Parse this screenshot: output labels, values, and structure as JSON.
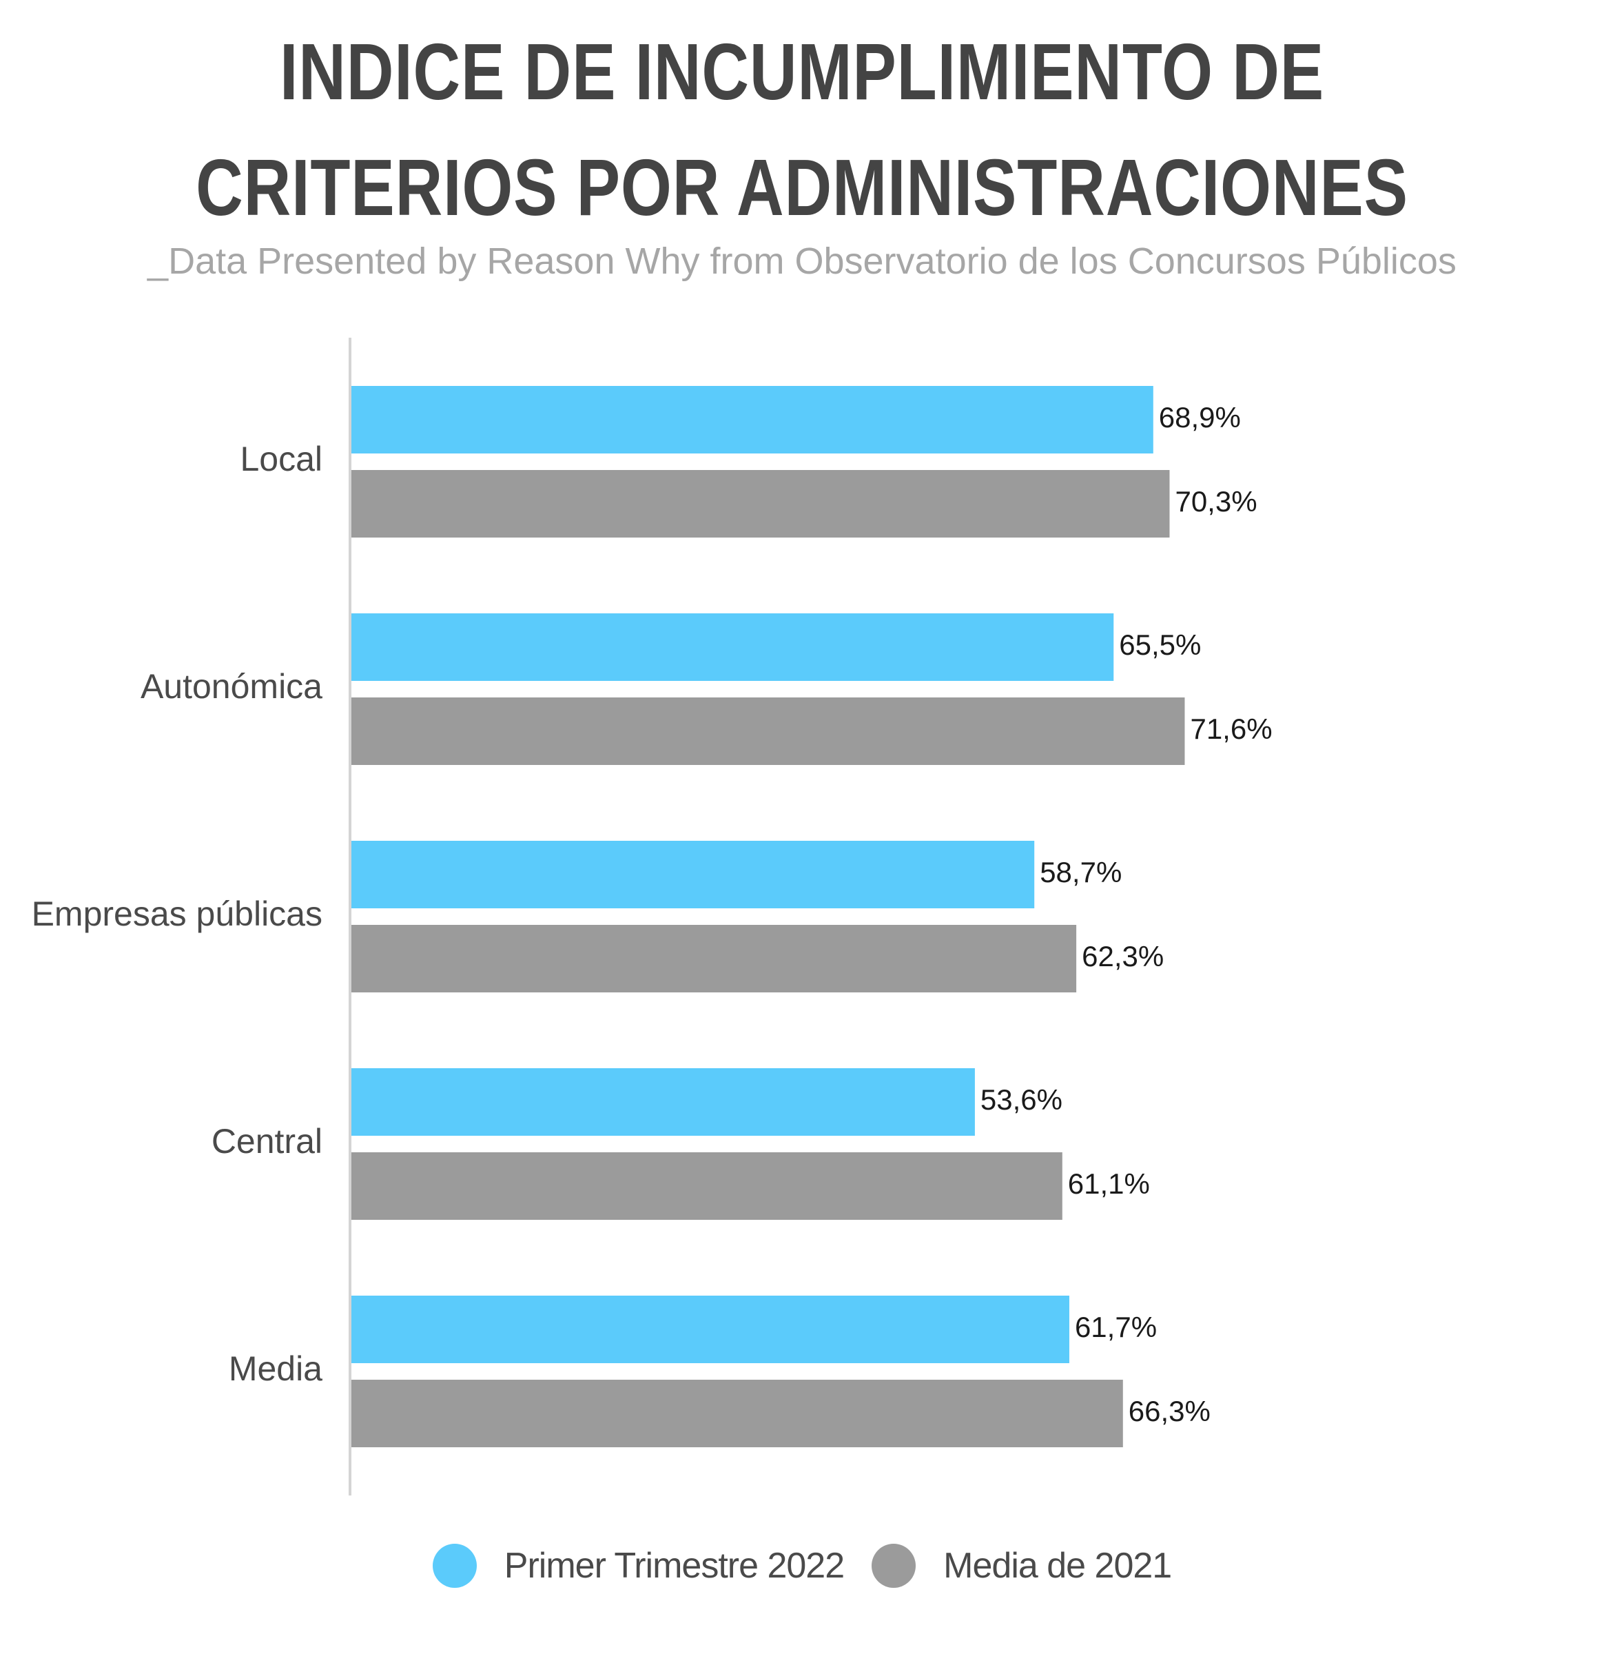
{
  "title": "INDICE DE INCUMPLIMIENTO DE CRITERIOS POR ADMINISTRACIONES",
  "subtitle": "_Data Presented by Reason Why from Observatorio de los Concursos Públicos",
  "colors": {
    "series1": "#5bcbfb",
    "series2": "#9b9b9b",
    "axis": "#d4d4d4",
    "category_text": "#4a4a4a",
    "value_text": "#1a1a1a"
  },
  "chart_data": {
    "type": "bar",
    "orientation": "horizontal",
    "categories": [
      "Local",
      "Autonómica",
      "Empresas públicas",
      "Central",
      "Media"
    ],
    "series": [
      {
        "name": "Primer Trimestre 2022",
        "values": [
          68.9,
          65.5,
          58.7,
          53.6,
          61.7
        ],
        "labels": [
          "68,9%",
          "65,5%",
          "58,7%",
          "53,6%",
          "61,7%"
        ]
      },
      {
        "name": "Media de 2021",
        "values": [
          70.3,
          71.6,
          62.3,
          61.1,
          66.3
        ],
        "labels": [
          "70,3%",
          "71,6%",
          "62,3%",
          "61,1%",
          "66,3%"
        ]
      }
    ],
    "xlim": [
      0,
      100
    ],
    "grid": false,
    "legend_position": "bottom-center"
  }
}
